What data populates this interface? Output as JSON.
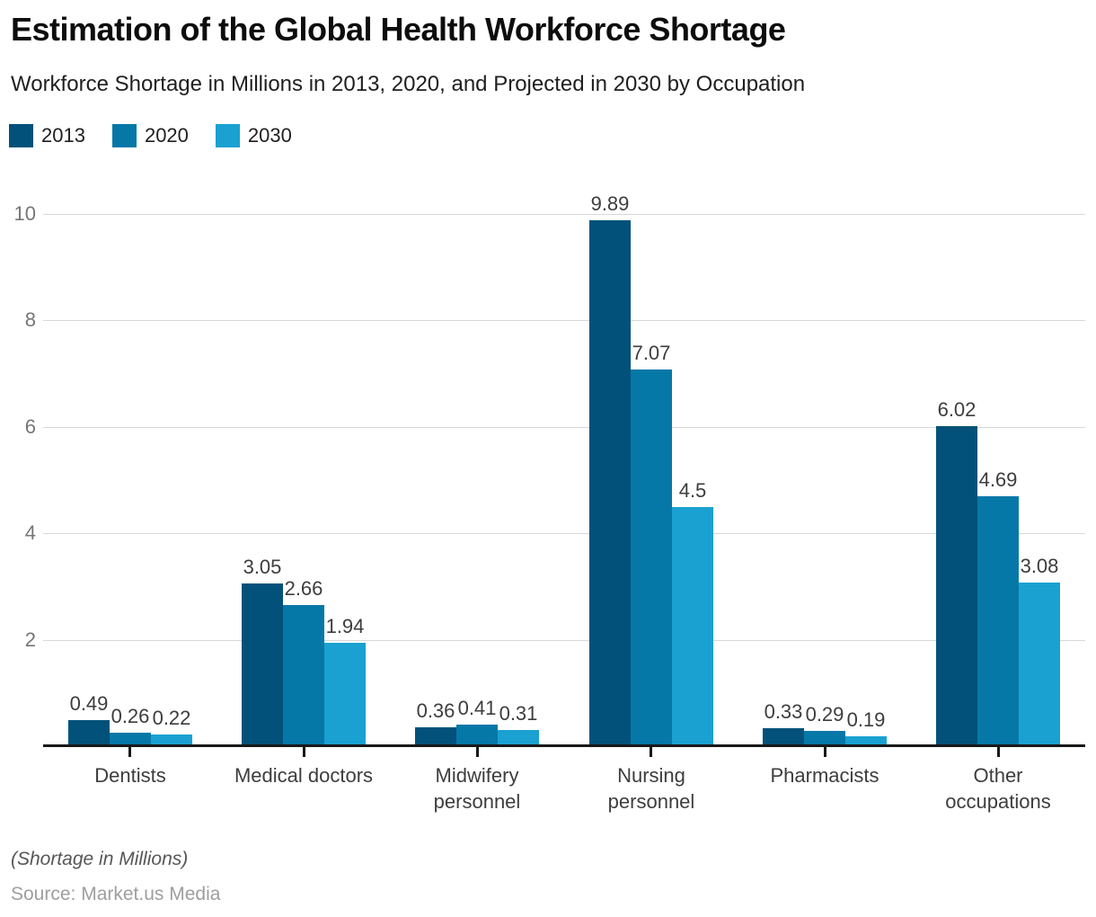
{
  "header": {
    "title": "Estimation of the Global Health Workforce Shortage",
    "subtitle": "Workforce Shortage in Millions in 2013, 2020, and Projected in 2030 by Occupation"
  },
  "chart_data": {
    "type": "bar",
    "title": "Estimation of the Global Health Workforce Shortage",
    "subtitle": "Workforce Shortage in Millions in 2013, 2020, and Projected in 2030 by Occupation",
    "categories": [
      "Dentists",
      "Medical doctors",
      "Midwifery personnel",
      "Nursing personnel",
      "Pharmacists",
      "Other occupations"
    ],
    "category_label_lines": [
      [
        "Dentists"
      ],
      [
        "Medical doctors"
      ],
      [
        "Midwifery",
        "personnel"
      ],
      [
        "Nursing",
        "personnel"
      ],
      [
        "Pharmacists"
      ],
      [
        "Other",
        "occupations"
      ]
    ],
    "series": [
      {
        "name": "2013",
        "color": "#02517a",
        "values": [
          0.49,
          3.05,
          0.36,
          9.89,
          0.33,
          6.02
        ]
      },
      {
        "name": "2020",
        "color": "#0678a7",
        "values": [
          0.26,
          2.66,
          0.41,
          7.07,
          0.29,
          4.69
        ]
      },
      {
        "name": "2030",
        "color": "#1aa1d1",
        "values": [
          0.22,
          1.94,
          0.31,
          4.5,
          0.19,
          3.08
        ]
      }
    ],
    "ylim": [
      0,
      10
    ],
    "yticks": [
      2,
      4,
      6,
      8,
      10
    ],
    "grid": true,
    "legend_position": "top-left",
    "value_labels": true,
    "ylabel": "",
    "xlabel": ""
  },
  "footer": {
    "note": "(Shortage in Millions)",
    "source": "Source: Market.us Media"
  }
}
